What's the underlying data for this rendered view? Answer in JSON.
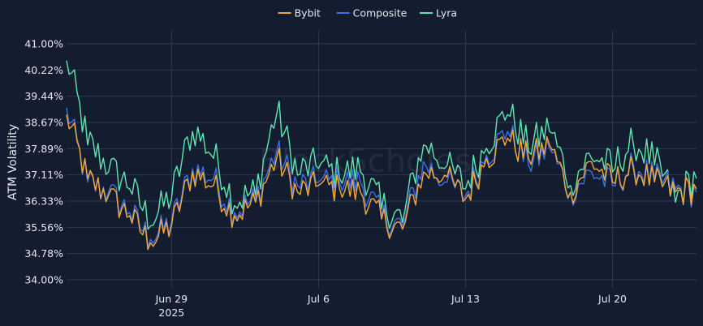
{
  "chart_data": {
    "type": "line",
    "ylabel": "ATM Volatility",
    "ylim": [
      34.0,
      41.0
    ],
    "y_ticks": [
      "34.00%",
      "34.78%",
      "35.56%",
      "36.33%",
      "37.11%",
      "37.89%",
      "38.67%",
      "39.44%",
      "40.22%",
      "41.00%"
    ],
    "xlim": [
      "2025-06-24",
      "2025-07-24"
    ],
    "x_ticks": [
      {
        "date": "2025-06-29",
        "label": "Jun 29",
        "sublabel": "2025"
      },
      {
        "date": "2025-07-06",
        "label": "Jul 6",
        "sublabel": ""
      },
      {
        "date": "2025-07-13",
        "label": "Jul 13",
        "sublabel": ""
      },
      {
        "date": "2025-07-20",
        "label": "Jul 20",
        "sublabel": ""
      }
    ],
    "grid": true,
    "legend_position": "top-center",
    "watermark": "BlockScholes",
    "x": [
      "2025-06-24",
      "2025-06-25",
      "2025-06-26",
      "2025-06-27",
      "2025-06-28",
      "2025-06-29",
      "2025-06-30",
      "2025-07-01",
      "2025-07-02",
      "2025-07-03",
      "2025-07-04",
      "2025-07-05",
      "2025-07-06",
      "2025-07-07",
      "2025-07-08",
      "2025-07-09",
      "2025-07-10",
      "2025-07-11",
      "2025-07-12",
      "2025-07-13",
      "2025-07-14",
      "2025-07-15",
      "2025-07-16",
      "2025-07-17",
      "2025-07-18",
      "2025-07-19",
      "2025-07-20",
      "2025-07-21",
      "2025-07-22",
      "2025-07-23",
      "2025-07-24"
    ],
    "series": [
      {
        "name": "Bybit",
        "color": "#f2a93b",
        "values": [
          38.9,
          37.0,
          36.5,
          35.9,
          35.1,
          35.6,
          37.2,
          36.8,
          35.9,
          36.3,
          37.6,
          36.6,
          36.8,
          36.7,
          36.6,
          35.8,
          35.5,
          37.2,
          37.1,
          36.4,
          37.6,
          38.2,
          37.6,
          38.0,
          36.6,
          37.5,
          36.9,
          37.3,
          36.9,
          36.6,
          36.7
        ]
      },
      {
        "name": "Composite",
        "color": "#3f6fe8",
        "values": [
          39.1,
          36.9,
          36.6,
          36.0,
          35.2,
          35.7,
          37.3,
          37.0,
          36.0,
          36.4,
          37.8,
          36.8,
          36.9,
          36.9,
          36.9,
          35.9,
          35.6,
          37.5,
          36.9,
          36.5,
          37.7,
          38.4,
          37.4,
          37.9,
          36.6,
          37.2,
          36.8,
          37.4,
          37.0,
          36.7,
          36.6
        ]
      },
      {
        "name": "Lyra",
        "color": "#5fe6b0",
        "values": [
          40.5,
          38.0,
          37.2,
          36.7,
          35.6,
          36.4,
          38.4,
          37.6,
          36.2,
          36.5,
          38.9,
          37.1,
          37.3,
          37.0,
          37.2,
          36.1,
          35.7,
          38.0,
          37.3,
          36.7,
          37.9,
          38.9,
          37.8,
          38.4,
          36.8,
          37.6,
          37.2,
          38.0,
          37.4,
          36.3,
          37.0
        ]
      }
    ]
  }
}
